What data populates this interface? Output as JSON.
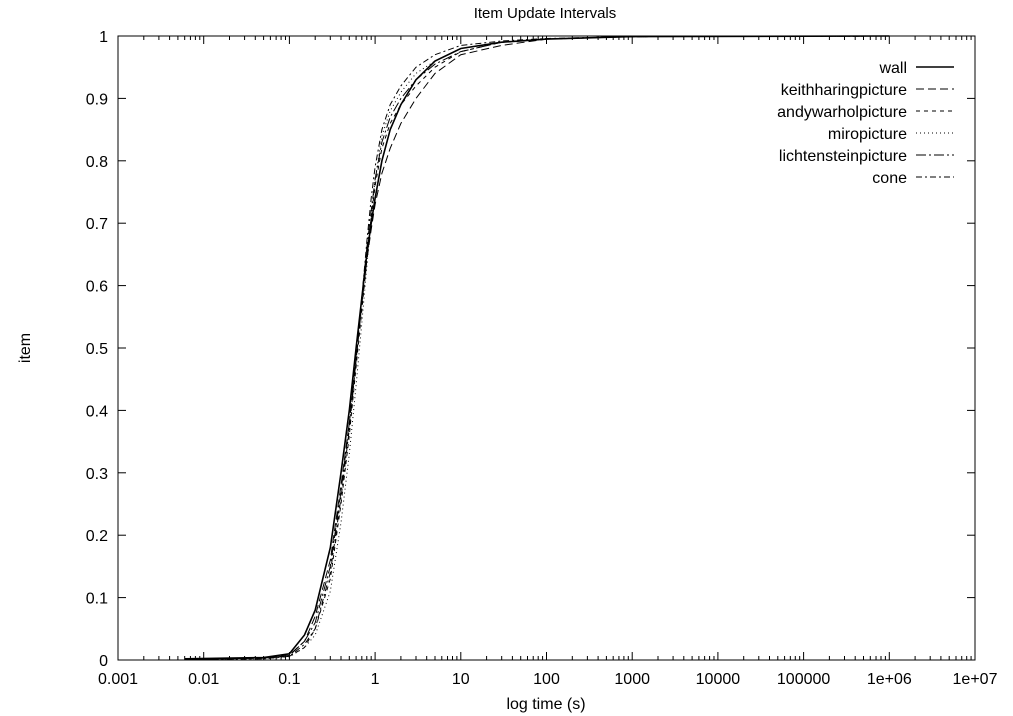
{
  "chart_data": {
    "type": "line",
    "title": "Item Update Intervals",
    "xlabel": "log time (s)",
    "ylabel": "item",
    "x_scale": "log",
    "xlim": [
      0.001,
      10000000
    ],
    "ylim": [
      0,
      1
    ],
    "x_tick_labels": [
      "0.001",
      "0.01",
      "0.1",
      "1",
      "10",
      "100",
      "1000",
      "10000",
      "100000",
      "1e+06",
      "1e+07"
    ],
    "y_tick_labels": [
      "0",
      "0.1",
      "0.2",
      "0.3",
      "0.4",
      "0.5",
      "0.6",
      "0.7",
      "0.8",
      "0.9",
      "1"
    ],
    "grid": false,
    "legend_position": "top-right",
    "series": [
      {
        "name": "wall",
        "dash": "solid",
        "x": [
          0.006,
          0.05,
          0.1,
          0.15,
          0.2,
          0.3,
          0.4,
          0.5,
          0.6,
          0.7,
          0.8,
          0.9,
          1,
          1.2,
          1.5,
          2,
          3,
          5,
          10,
          30,
          100,
          1000,
          1000000,
          1000000
        ],
        "y": [
          0.002,
          0.004,
          0.01,
          0.04,
          0.08,
          0.18,
          0.3,
          0.4,
          0.5,
          0.58,
          0.65,
          0.7,
          0.74,
          0.8,
          0.85,
          0.89,
          0.93,
          0.96,
          0.98,
          0.99,
          0.995,
          0.999,
          1,
          1
        ]
      },
      {
        "name": "keithharingpicture",
        "dash": "8,4",
        "x": [
          0.006,
          0.05,
          0.1,
          0.15,
          0.2,
          0.3,
          0.4,
          0.5,
          0.6,
          0.7,
          0.8,
          0.9,
          1,
          1.2,
          1.5,
          2,
          3,
          5,
          10,
          30,
          100,
          1000,
          1000000
        ],
        "y": [
          0.001,
          0.003,
          0.008,
          0.03,
          0.07,
          0.16,
          0.28,
          0.38,
          0.48,
          0.57,
          0.64,
          0.69,
          0.73,
          0.78,
          0.82,
          0.86,
          0.9,
          0.94,
          0.97,
          0.985,
          0.995,
          0.999,
          1
        ]
      },
      {
        "name": "andywarholpicture",
        "dash": "4,4",
        "x": [
          0.006,
          0.05,
          0.1,
          0.15,
          0.2,
          0.3,
          0.4,
          0.5,
          0.6,
          0.7,
          0.8,
          0.9,
          1,
          1.2,
          1.5,
          2,
          3,
          5,
          10,
          30,
          100,
          1000,
          1000000
        ],
        "y": [
          0.001,
          0.003,
          0.006,
          0.02,
          0.05,
          0.13,
          0.25,
          0.36,
          0.47,
          0.56,
          0.64,
          0.71,
          0.76,
          0.82,
          0.86,
          0.89,
          0.92,
          0.95,
          0.975,
          0.99,
          0.995,
          0.999,
          1
        ]
      },
      {
        "name": "miropicture",
        "dash": "1,3",
        "x": [
          0.006,
          0.05,
          0.1,
          0.15,
          0.2,
          0.3,
          0.4,
          0.5,
          0.6,
          0.7,
          0.8,
          0.9,
          1,
          1.2,
          1.5,
          2,
          3,
          5,
          10,
          30,
          100,
          1000,
          1000000
        ],
        "y": [
          0.001,
          0.002,
          0.005,
          0.02,
          0.04,
          0.11,
          0.22,
          0.33,
          0.44,
          0.54,
          0.63,
          0.71,
          0.77,
          0.84,
          0.88,
          0.91,
          0.94,
          0.96,
          0.98,
          0.99,
          0.995,
          0.999,
          1
        ]
      },
      {
        "name": "lichtensteinpicture",
        "dash": "10,3,2,3",
        "x": [
          0.006,
          0.05,
          0.1,
          0.15,
          0.2,
          0.3,
          0.4,
          0.5,
          0.6,
          0.7,
          0.8,
          0.9,
          1,
          1.2,
          1.5,
          2,
          3,
          5,
          10,
          30,
          100,
          1000,
          1000000
        ],
        "y": [
          0.001,
          0.003,
          0.007,
          0.03,
          0.06,
          0.15,
          0.27,
          0.38,
          0.49,
          0.58,
          0.66,
          0.72,
          0.77,
          0.83,
          0.87,
          0.9,
          0.93,
          0.955,
          0.975,
          0.99,
          0.995,
          0.999,
          1
        ]
      },
      {
        "name": "cone",
        "dash": "6,3,2,3",
        "x": [
          0.006,
          0.05,
          0.1,
          0.15,
          0.2,
          0.3,
          0.4,
          0.5,
          0.6,
          0.7,
          0.8,
          0.9,
          1,
          1.2,
          1.5,
          2,
          3,
          5,
          10,
          30,
          100,
          1000,
          1000000
        ],
        "y": [
          0.001,
          0.002,
          0.006,
          0.025,
          0.05,
          0.14,
          0.26,
          0.37,
          0.48,
          0.58,
          0.67,
          0.74,
          0.79,
          0.85,
          0.89,
          0.92,
          0.95,
          0.97,
          0.985,
          0.992,
          0.996,
          0.999,
          1
        ]
      }
    ]
  }
}
